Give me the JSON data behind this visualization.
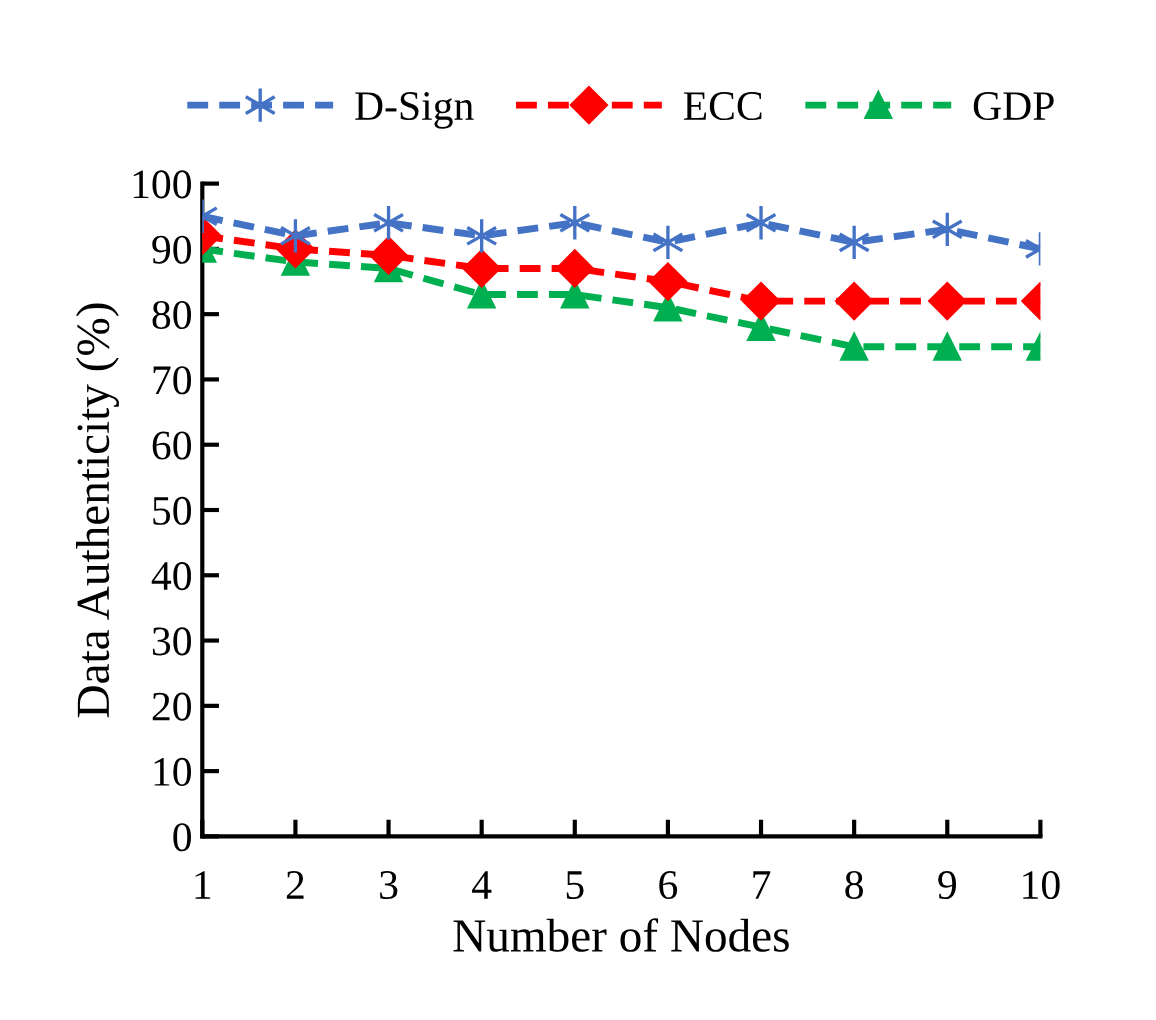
{
  "chart_data": {
    "type": "line",
    "xlabel": "Number of Nodes",
    "ylabel": "Data Authenticity (%)",
    "x": [
      1,
      2,
      3,
      4,
      5,
      6,
      7,
      8,
      9,
      10
    ],
    "series": [
      {
        "name": "D-Sign",
        "color": "#4472c4",
        "marker": "cross",
        "values": [
          95,
          92,
          94,
          92,
          94,
          91,
          94,
          91,
          93,
          90
        ]
      },
      {
        "name": "ECC",
        "color": "#ff0000",
        "marker": "diamond",
        "values": [
          92,
          90,
          89,
          87,
          87,
          85,
          82,
          82,
          82,
          82
        ]
      },
      {
        "name": "GDP",
        "color": "#00b050",
        "marker": "triangle",
        "values": [
          90,
          88,
          87,
          83,
          83,
          81,
          78,
          75,
          75,
          75
        ]
      }
    ],
    "xlim": [
      1,
      10
    ],
    "xticks": [
      1,
      2,
      3,
      4,
      5,
      6,
      7,
      8,
      9,
      10
    ],
    "ylim": [
      0,
      100
    ],
    "yticks": [
      0,
      10,
      20,
      30,
      40,
      50,
      60,
      70,
      80,
      90,
      100
    ],
    "line_style": "dashed",
    "grid": false,
    "legend": "top"
  }
}
